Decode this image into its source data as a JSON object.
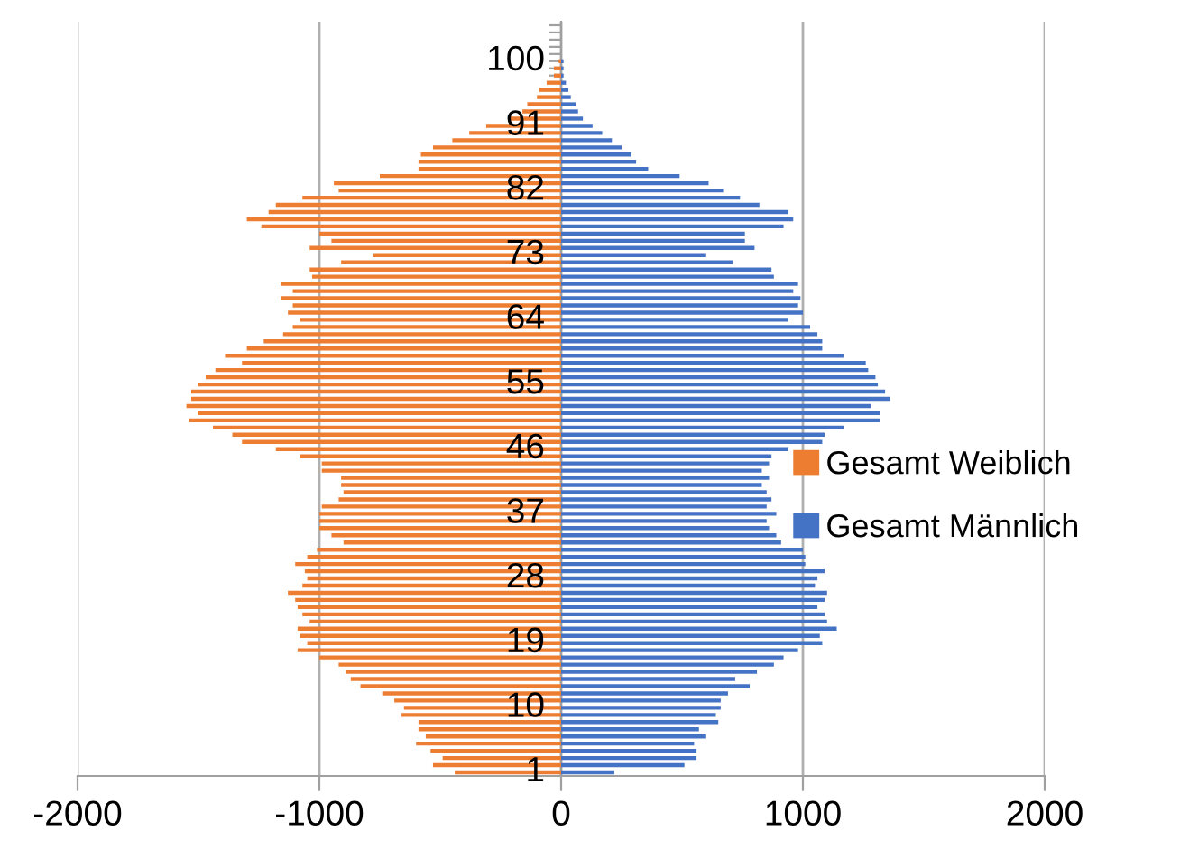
{
  "chart_data": {
    "type": "bar",
    "orientation": "horizontal",
    "stacked": true,
    "categories": [
      null,
      null,
      null,
      null,
      null,
      "100",
      null,
      null,
      null,
      null,
      null,
      null,
      null,
      null,
      "91",
      null,
      null,
      null,
      null,
      null,
      null,
      null,
      null,
      "82",
      null,
      null,
      null,
      null,
      null,
      null,
      null,
      null,
      "73",
      null,
      null,
      null,
      null,
      null,
      null,
      null,
      null,
      "64",
      null,
      null,
      null,
      null,
      null,
      null,
      null,
      null,
      "55",
      null,
      null,
      null,
      null,
      null,
      null,
      null,
      null,
      "46",
      null,
      null,
      null,
      null,
      null,
      null,
      null,
      null,
      "37",
      null,
      null,
      null,
      null,
      null,
      null,
      null,
      null,
      "28",
      null,
      null,
      null,
      null,
      null,
      null,
      null,
      null,
      "19",
      null,
      null,
      null,
      null,
      null,
      null,
      null,
      null,
      "10",
      null,
      null,
      null,
      null,
      null,
      null,
      null,
      null,
      "1"
    ],
    "series": [
      {
        "name": "Gesamt Weiblich",
        "color": "#ed7d31",
        "values": [
          0,
          0,
          0,
          0,
          0,
          -10,
          -30,
          -30,
          -60,
          -90,
          -100,
          -140,
          -160,
          -210,
          -310,
          -380,
          -450,
          -530,
          -580,
          -590,
          -590,
          -750,
          -940,
          -920,
          -1070,
          -1180,
          -1210,
          -1300,
          -1240,
          -1000,
          -950,
          -1040,
          -780,
          -910,
          -1040,
          -1030,
          -1160,
          -1110,
          -1160,
          -1110,
          -1130,
          -1080,
          -1110,
          -1150,
          -1230,
          -1300,
          -1390,
          -1320,
          -1430,
          -1470,
          -1500,
          -1530,
          -1530,
          -1550,
          -1500,
          -1540,
          -1440,
          -1360,
          -1320,
          -1180,
          -1080,
          -990,
          -990,
          -910,
          -910,
          -900,
          -920,
          -990,
          -1000,
          -1000,
          -1000,
          -950,
          -900,
          -1010,
          -1050,
          -1100,
          -1060,
          -1050,
          -1070,
          -1130,
          -1100,
          -1090,
          -1070,
          -1040,
          -1090,
          -1080,
          -1050,
          -1090,
          -1000,
          -920,
          -890,
          -870,
          -830,
          -740,
          -690,
          -650,
          -660,
          -590,
          -590,
          -560,
          -600,
          -540,
          -490,
          -530,
          -440
        ]
      },
      {
        "name": "Gesamt Männlich",
        "color": "#4472c4",
        "values": [
          0,
          0,
          0,
          0,
          0,
          10,
          10,
          10,
          20,
          30,
          40,
          60,
          70,
          90,
          130,
          170,
          210,
          250,
          290,
          310,
          360,
          490,
          610,
          670,
          740,
          820,
          940,
          960,
          920,
          760,
          760,
          800,
          600,
          710,
          870,
          880,
          980,
          960,
          990,
          980,
          1000,
          940,
          1030,
          1060,
          1080,
          1080,
          1170,
          1260,
          1270,
          1300,
          1310,
          1340,
          1360,
          1280,
          1320,
          1320,
          1170,
          1090,
          1080,
          940,
          870,
          860,
          830,
          860,
          830,
          850,
          870,
          850,
          890,
          850,
          860,
          890,
          910,
          1000,
          1010,
          1010,
          1090,
          1060,
          1050,
          1100,
          1090,
          1060,
          1090,
          1100,
          1140,
          1070,
          1080,
          980,
          920,
          880,
          810,
          720,
          780,
          690,
          660,
          660,
          640,
          650,
          570,
          600,
          550,
          560,
          560,
          510,
          220
        ]
      }
    ],
    "xlim": [
      -2000,
      2000
    ],
    "xticks": [
      -2000,
      -1000,
      0,
      1000,
      2000
    ],
    "grid": "x",
    "legend": "right"
  }
}
